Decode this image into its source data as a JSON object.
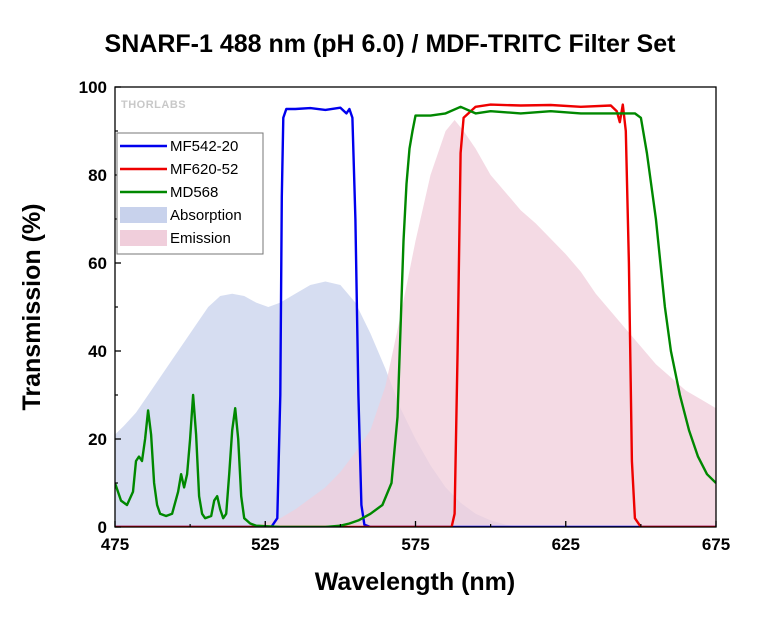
{
  "watermark": "THORLABS",
  "chart_data": {
    "type": "line",
    "title": "SNARF-1 488 nm (pH 6.0) / MDF-TRITC Filter Set",
    "xlabel": "Wavelength (nm)",
    "ylabel": "Transmission (%)",
    "xlim": [
      475,
      675
    ],
    "ylim": [
      0,
      100
    ],
    "xticks": [
      475,
      525,
      575,
      625,
      675
    ],
    "yticks": [
      0,
      20,
      40,
      60,
      80,
      100
    ],
    "grid": false,
    "legend_position": "top-left",
    "series": [
      {
        "name": "MF542-20",
        "kind": "line",
        "color": "#0000ee",
        "points": [
          [
            475,
            0
          ],
          [
            527,
            0
          ],
          [
            529,
            2
          ],
          [
            530,
            30
          ],
          [
            530.5,
            75
          ],
          [
            531,
            93
          ],
          [
            532,
            95
          ],
          [
            535,
            95
          ],
          [
            540,
            95.2
          ],
          [
            545,
            94.8
          ],
          [
            550,
            95.3
          ],
          [
            552,
            94
          ],
          [
            553,
            95
          ],
          [
            554,
            93
          ],
          [
            555,
            70
          ],
          [
            556,
            30
          ],
          [
            557,
            5
          ],
          [
            558,
            0.5
          ],
          [
            560,
            0
          ],
          [
            675,
            0
          ]
        ]
      },
      {
        "name": "MF620-52",
        "kind": "line",
        "color": "#ee0000",
        "points": [
          [
            475,
            0
          ],
          [
            587,
            0
          ],
          [
            588,
            3
          ],
          [
            589,
            40
          ],
          [
            590,
            85
          ],
          [
            591,
            93
          ],
          [
            595,
            95.5
          ],
          [
            600,
            96
          ],
          [
            610,
            95.8
          ],
          [
            620,
            95.9
          ],
          [
            630,
            95.5
          ],
          [
            640,
            95.8
          ],
          [
            642,
            94.5
          ],
          [
            643,
            92
          ],
          [
            644,
            96
          ],
          [
            645,
            90
          ],
          [
            646,
            60
          ],
          [
            647,
            15
          ],
          [
            648,
            2
          ],
          [
            650,
            0
          ],
          [
            675,
            0
          ]
        ]
      },
      {
        "name": "MD568",
        "kind": "line",
        "color": "#008800",
        "points": [
          [
            475,
            10
          ],
          [
            477,
            6
          ],
          [
            479,
            5
          ],
          [
            481,
            8
          ],
          [
            482,
            15
          ],
          [
            483,
            16
          ],
          [
            484,
            15
          ],
          [
            485,
            20
          ],
          [
            486,
            26.5
          ],
          [
            487,
            21
          ],
          [
            488,
            10
          ],
          [
            489,
            5
          ],
          [
            490,
            3
          ],
          [
            492,
            2.5
          ],
          [
            494,
            3
          ],
          [
            496,
            8
          ],
          [
            497,
            12
          ],
          [
            498,
            9
          ],
          [
            499,
            12
          ],
          [
            500,
            20
          ],
          [
            501,
            30
          ],
          [
            502,
            21
          ],
          [
            503,
            7
          ],
          [
            504,
            3
          ],
          [
            505,
            2
          ],
          [
            507,
            2.5
          ],
          [
            508,
            6
          ],
          [
            509,
            7
          ],
          [
            510,
            4
          ],
          [
            511,
            2
          ],
          [
            512,
            3
          ],
          [
            513,
            12
          ],
          [
            514,
            22
          ],
          [
            515,
            27
          ],
          [
            516,
            20
          ],
          [
            517,
            7
          ],
          [
            518,
            2
          ],
          [
            520,
            0.8
          ],
          [
            522,
            0.3
          ],
          [
            530,
            0
          ],
          [
            545,
            0
          ],
          [
            550,
            0.3
          ],
          [
            553,
            0.8
          ],
          [
            556,
            1.5
          ],
          [
            560,
            3
          ],
          [
            564,
            5
          ],
          [
            567,
            10
          ],
          [
            569,
            25
          ],
          [
            570,
            45
          ],
          [
            571,
            65
          ],
          [
            572,
            78
          ],
          [
            573,
            86
          ],
          [
            574,
            90
          ],
          [
            575,
            93.5
          ],
          [
            580,
            93.5
          ],
          [
            585,
            94
          ],
          [
            590,
            95.5
          ],
          [
            595,
            94
          ],
          [
            600,
            94.5
          ],
          [
            610,
            94
          ],
          [
            620,
            94.5
          ],
          [
            630,
            94
          ],
          [
            640,
            94
          ],
          [
            648,
            94
          ],
          [
            650,
            93
          ],
          [
            652,
            85
          ],
          [
            655,
            70
          ],
          [
            658,
            50
          ],
          [
            660,
            40
          ],
          [
            663,
            30
          ],
          [
            666,
            22
          ],
          [
            669,
            16
          ],
          [
            672,
            12
          ],
          [
            675,
            10
          ]
        ]
      },
      {
        "name": "Absorption",
        "kind": "area",
        "color": "#c8d2ec",
        "points": [
          [
            475,
            21
          ],
          [
            478,
            23
          ],
          [
            482,
            26
          ],
          [
            486,
            30
          ],
          [
            490,
            34
          ],
          [
            494,
            38
          ],
          [
            498,
            42
          ],
          [
            502,
            46
          ],
          [
            506,
            50
          ],
          [
            510,
            52.5
          ],
          [
            514,
            53
          ],
          [
            518,
            52.5
          ],
          [
            522,
            51
          ],
          [
            526,
            50
          ],
          [
            530,
            51
          ],
          [
            535,
            53
          ],
          [
            540,
            55
          ],
          [
            545,
            55.8
          ],
          [
            550,
            55
          ],
          [
            555,
            51
          ],
          [
            560,
            44
          ],
          [
            565,
            36
          ],
          [
            570,
            27
          ],
          [
            575,
            20
          ],
          [
            580,
            14
          ],
          [
            585,
            9
          ],
          [
            590,
            5.5
          ],
          [
            595,
            3
          ],
          [
            600,
            1.5
          ],
          [
            605,
            0.5
          ],
          [
            610,
            0
          ],
          [
            675,
            0
          ]
        ]
      },
      {
        "name": "Emission",
        "kind": "area",
        "color": "#f0cedb",
        "points": [
          [
            475,
            0
          ],
          [
            520,
            0
          ],
          [
            525,
            1
          ],
          [
            530,
            2
          ],
          [
            535,
            4
          ],
          [
            540,
            6.5
          ],
          [
            545,
            9
          ],
          [
            550,
            12.5
          ],
          [
            555,
            17
          ],
          [
            560,
            22
          ],
          [
            565,
            32
          ],
          [
            570,
            48
          ],
          [
            575,
            65
          ],
          [
            580,
            80
          ],
          [
            585,
            90
          ],
          [
            588,
            92.5
          ],
          [
            591,
            90
          ],
          [
            595,
            86
          ],
          [
            600,
            80
          ],
          [
            605,
            76
          ],
          [
            610,
            72
          ],
          [
            615,
            69
          ],
          [
            620,
            65.5
          ],
          [
            625,
            62
          ],
          [
            630,
            58
          ],
          [
            635,
            53
          ],
          [
            640,
            49
          ],
          [
            645,
            45
          ],
          [
            650,
            41
          ],
          [
            655,
            37
          ],
          [
            660,
            34
          ],
          [
            665,
            31
          ],
          [
            670,
            29
          ],
          [
            675,
            27
          ],
          [
            675,
            0
          ]
        ]
      }
    ]
  }
}
